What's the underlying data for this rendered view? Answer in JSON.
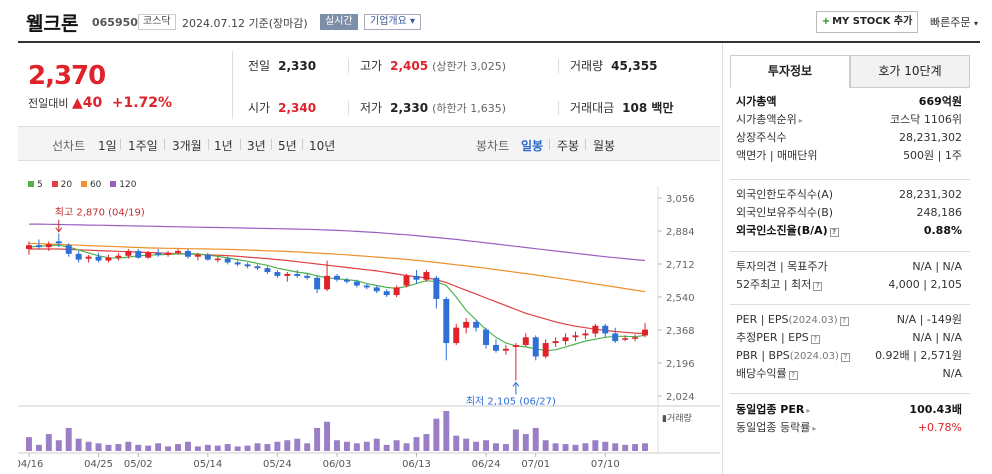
{
  "header": {
    "name": "웰크론",
    "code": "065950",
    "market": "코스닥",
    "date": "2024.07.12 기준(장마감)",
    "live": "실시간",
    "profile": "기업개요",
    "mystock": "MY STOCK 추가",
    "quick": "빠른주문"
  },
  "price": {
    "current": "2,370",
    "diff_label": "전일대비",
    "diff_value": "40",
    "diff_rate": "+1.72%"
  },
  "summary": {
    "prev_label": "전일",
    "prev_value": "2,330",
    "high_label": "고가",
    "high_value": "2,405",
    "upper_limit": "(상한가 3,025)",
    "volume_label": "거래량",
    "volume_value": "45,355",
    "open_label": "시가",
    "open_value": "2,340",
    "low_label": "저가",
    "low_value": "2,330",
    "lower_limit": "(하한가 1,635)",
    "amount_label": "거래대금",
    "amount_value": "108 백만"
  },
  "periods": {
    "line_chart": "선차트",
    "items": [
      "1일",
      "1주일",
      "3개월",
      "1년",
      "3년",
      "5년",
      "10년"
    ],
    "candle_chart": "봉차트",
    "candle_items": [
      "일봉",
      "주봉",
      "월봉"
    ]
  },
  "chart_data": {
    "type": "candlestick",
    "legend": [
      "5",
      "20",
      "60",
      "120"
    ],
    "legend_colors": [
      "#4db34d",
      "#e04040",
      "#f0902a",
      "#9a60c0"
    ],
    "y_ticks": [
      "3,056",
      "2,884",
      "2,712",
      "2,540",
      "2,368",
      "2,196",
      "2,024"
    ],
    "y_range": [
      2024,
      3056
    ],
    "x_ticks": [
      "04/16",
      "04/25",
      "05/02",
      "05/14",
      "05/24",
      "06/03",
      "06/13",
      "06/24",
      "07/01",
      "07/10"
    ],
    "x_tick_index": [
      0,
      7,
      11,
      18,
      25,
      31,
      39,
      46,
      51,
      58
    ],
    "annotation_high": "최고 2,870 (04/19)",
    "annotation_low": "최저 2,105 (06/27)",
    "volume_label": "거래량",
    "candles": [
      {
        "o": 2790,
        "h": 2830,
        "l": 2760,
        "c": 2810
      },
      {
        "o": 2810,
        "h": 2840,
        "l": 2790,
        "c": 2800
      },
      {
        "o": 2800,
        "h": 2830,
        "l": 2780,
        "c": 2815
      },
      {
        "o": 2830,
        "h": 2870,
        "l": 2800,
        "c": 2820
      },
      {
        "o": 2810,
        "h": 2820,
        "l": 2750,
        "c": 2765
      },
      {
        "o": 2765,
        "h": 2780,
        "l": 2720,
        "c": 2735
      },
      {
        "o": 2740,
        "h": 2760,
        "l": 2720,
        "c": 2750
      },
      {
        "o": 2750,
        "h": 2770,
        "l": 2720,
        "c": 2730
      },
      {
        "o": 2730,
        "h": 2760,
        "l": 2720,
        "c": 2745
      },
      {
        "o": 2745,
        "h": 2770,
        "l": 2730,
        "c": 2755
      },
      {
        "o": 2755,
        "h": 2790,
        "l": 2740,
        "c": 2780
      },
      {
        "o": 2780,
        "h": 2790,
        "l": 2740,
        "c": 2745
      },
      {
        "o": 2745,
        "h": 2780,
        "l": 2740,
        "c": 2770
      },
      {
        "o": 2770,
        "h": 2790,
        "l": 2750,
        "c": 2760
      },
      {
        "o": 2760,
        "h": 2780,
        "l": 2750,
        "c": 2770
      },
      {
        "o": 2770,
        "h": 2790,
        "l": 2760,
        "c": 2780
      },
      {
        "o": 2780,
        "h": 2790,
        "l": 2740,
        "c": 2750
      },
      {
        "o": 2750,
        "h": 2770,
        "l": 2730,
        "c": 2760
      },
      {
        "o": 2760,
        "h": 2770,
        "l": 2730,
        "c": 2735
      },
      {
        "o": 2735,
        "h": 2750,
        "l": 2720,
        "c": 2740
      },
      {
        "o": 2740,
        "h": 2750,
        "l": 2710,
        "c": 2720
      },
      {
        "o": 2720,
        "h": 2730,
        "l": 2700,
        "c": 2710
      },
      {
        "o": 2710,
        "h": 2720,
        "l": 2690,
        "c": 2700
      },
      {
        "o": 2700,
        "h": 2710,
        "l": 2680,
        "c": 2690
      },
      {
        "o": 2690,
        "h": 2700,
        "l": 2660,
        "c": 2670
      },
      {
        "o": 2670,
        "h": 2680,
        "l": 2640,
        "c": 2650
      },
      {
        "o": 2650,
        "h": 2670,
        "l": 2620,
        "c": 2660
      },
      {
        "o": 2660,
        "h": 2680,
        "l": 2640,
        "c": 2650
      },
      {
        "o": 2650,
        "h": 2660,
        "l": 2630,
        "c": 2640
      },
      {
        "o": 2640,
        "h": 2650,
        "l": 2560,
        "c": 2580
      },
      {
        "o": 2580,
        "h": 2730,
        "l": 2570,
        "c": 2650
      },
      {
        "o": 2650,
        "h": 2660,
        "l": 2620,
        "c": 2630
      },
      {
        "o": 2630,
        "h": 2640,
        "l": 2610,
        "c": 2620
      },
      {
        "o": 2620,
        "h": 2630,
        "l": 2590,
        "c": 2600
      },
      {
        "o": 2600,
        "h": 2610,
        "l": 2580,
        "c": 2590
      },
      {
        "o": 2590,
        "h": 2600,
        "l": 2560,
        "c": 2570
      },
      {
        "o": 2570,
        "h": 2580,
        "l": 2540,
        "c": 2550
      },
      {
        "o": 2550,
        "h": 2600,
        "l": 2540,
        "c": 2590
      },
      {
        "o": 2600,
        "h": 2660,
        "l": 2590,
        "c": 2650
      },
      {
        "o": 2650,
        "h": 2680,
        "l": 2610,
        "c": 2630
      },
      {
        "o": 2630,
        "h": 2680,
        "l": 2620,
        "c": 2670
      },
      {
        "o": 2640,
        "h": 2650,
        "l": 2480,
        "c": 2530
      },
      {
        "o": 2530,
        "h": 2540,
        "l": 2210,
        "c": 2300
      },
      {
        "o": 2300,
        "h": 2400,
        "l": 2290,
        "c": 2380
      },
      {
        "o": 2380,
        "h": 2430,
        "l": 2350,
        "c": 2410
      },
      {
        "o": 2410,
        "h": 2420,
        "l": 2360,
        "c": 2380
      },
      {
        "o": 2370,
        "h": 2380,
        "l": 2270,
        "c": 2290
      },
      {
        "o": 2290,
        "h": 2320,
        "l": 2250,
        "c": 2260
      },
      {
        "o": 2260,
        "h": 2290,
        "l": 2240,
        "c": 2270
      },
      {
        "o": 2280,
        "h": 2300,
        "l": 2105,
        "c": 2290
      },
      {
        "o": 2290,
        "h": 2350,
        "l": 2280,
        "c": 2330
      },
      {
        "o": 2330,
        "h": 2340,
        "l": 2210,
        "c": 2230
      },
      {
        "o": 2230,
        "h": 2320,
        "l": 2220,
        "c": 2300
      },
      {
        "o": 2300,
        "h": 2330,
        "l": 2280,
        "c": 2310
      },
      {
        "o": 2310,
        "h": 2350,
        "l": 2290,
        "c": 2330
      },
      {
        "o": 2330,
        "h": 2360,
        "l": 2310,
        "c": 2340
      },
      {
        "o": 2340,
        "h": 2370,
        "l": 2320,
        "c": 2350
      },
      {
        "o": 2350,
        "h": 2400,
        "l": 2330,
        "c": 2390
      },
      {
        "o": 2390,
        "h": 2400,
        "l": 2330,
        "c": 2350
      },
      {
        "o": 2350,
        "h": 2380,
        "l": 2300,
        "c": 2310
      },
      {
        "o": 2320,
        "h": 2340,
        "l": 2310,
        "c": 2325
      },
      {
        "o": 2325,
        "h": 2345,
        "l": 2310,
        "c": 2330
      },
      {
        "o": 2340,
        "h": 2405,
        "l": 2330,
        "c": 2370
      }
    ],
    "volume": [
      18,
      8,
      22,
      14,
      30,
      16,
      12,
      10,
      8,
      9,
      12,
      8,
      7,
      10,
      6,
      9,
      12,
      6,
      8,
      7,
      9,
      6,
      7,
      10,
      9,
      12,
      14,
      16,
      10,
      30,
      38,
      14,
      12,
      10,
      12,
      16,
      8,
      14,
      10,
      18,
      22,
      42,
      52,
      20,
      16,
      12,
      14,
      10,
      9,
      28,
      22,
      30,
      14,
      10,
      9,
      8,
      10,
      14,
      12,
      10,
      8,
      9,
      10
    ],
    "ma5": [
      2800,
      2805,
      2808,
      2810,
      2800,
      2785,
      2770,
      2755,
      2745,
      2742,
      2748,
      2755,
      2758,
      2760,
      2762,
      2765,
      2766,
      2764,
      2758,
      2752,
      2744,
      2735,
      2726,
      2715,
      2705,
      2690,
      2680,
      2670,
      2663,
      2650,
      2640,
      2635,
      2630,
      2625,
      2610,
      2600,
      2590,
      2585,
      2595,
      2610,
      2625,
      2620,
      2600,
      2540,
      2470,
      2420,
      2370,
      2330,
      2300,
      2285,
      2280,
      2270,
      2260,
      2265,
      2280,
      2295,
      2310,
      2320,
      2330,
      2335,
      2335,
      2333,
      2340
    ],
    "ma20": [
      2790,
      2790,
      2790,
      2790,
      2788,
      2786,
      2784,
      2782,
      2780,
      2778,
      2776,
      2774,
      2772,
      2770,
      2768,
      2766,
      2764,
      2762,
      2760,
      2758,
      2756,
      2752,
      2748,
      2744,
      2740,
      2735,
      2730,
      2724,
      2718,
      2712,
      2706,
      2700,
      2694,
      2688,
      2682,
      2676,
      2668,
      2660,
      2652,
      2645,
      2640,
      2630,
      2615,
      2595,
      2575,
      2555,
      2535,
      2515,
      2495,
      2475,
      2455,
      2440,
      2425,
      2410,
      2398,
      2388,
      2380,
      2372,
      2366,
      2360,
      2356,
      2352,
      2350
    ],
    "ma60": [
      2820,
      2818,
      2816,
      2814,
      2812,
      2810,
      2808,
      2806,
      2804,
      2802,
      2800,
      2798,
      2796,
      2795,
      2794,
      2793,
      2792,
      2791,
      2790,
      2789,
      2788,
      2787,
      2785,
      2783,
      2781,
      2779,
      2777,
      2775,
      2772,
      2769,
      2766,
      2763,
      2760,
      2756,
      2752,
      2748,
      2744,
      2740,
      2736,
      2731,
      2726,
      2720,
      2714,
      2708,
      2702,
      2696,
      2690,
      2683,
      2676,
      2669,
      2662,
      2655,
      2647,
      2640,
      2632,
      2624,
      2616,
      2608,
      2600,
      2592,
      2584,
      2576,
      2568
    ],
    "ma120": [
      2920,
      2920,
      2919,
      2918,
      2917,
      2916,
      2915,
      2914,
      2913,
      2912,
      2911,
      2910,
      2909,
      2908,
      2907,
      2906,
      2905,
      2904,
      2903,
      2902,
      2901,
      2900,
      2899,
      2898,
      2897,
      2896,
      2895,
      2894,
      2893,
      2891,
      2889,
      2887,
      2885,
      2882,
      2879,
      2876,
      2872,
      2868,
      2864,
      2860,
      2855,
      2850,
      2845,
      2840,
      2834,
      2828,
      2822,
      2816,
      2810,
      2804,
      2798,
      2792,
      2786,
      2780,
      2774,
      2768,
      2762,
      2756,
      2750,
      2745,
      2740,
      2735,
      2730
    ]
  },
  "invest": {
    "tab_active": "투자정보",
    "tab_inactive": "호가 10단계",
    "s1": [
      {
        "l": "시가총액",
        "r": "669억원",
        "bold": true
      },
      {
        "l": "시가총액순위",
        "r": "코스닥 1106위",
        "arrow": true
      },
      {
        "l": "상장주식수",
        "r": "28,231,302"
      },
      {
        "l": "액면가 | 매매단위",
        "r": "500원 | 1주"
      }
    ],
    "s2": [
      {
        "l": "외국인한도주식수(A)",
        "r": "28,231,302"
      },
      {
        "l": "외국인보유주식수(B)",
        "r": "248,186"
      },
      {
        "l": "외국인소진율(B/A)",
        "r": "0.88%",
        "bold": true,
        "q": true
      }
    ],
    "s3": [
      {
        "l": "투자의견 | 목표주가",
        "r": "N/A | N/A"
      },
      {
        "l": "52주최고 | 최저",
        "r": "4,000 | 2,105",
        "q": true
      }
    ],
    "s4": [
      {
        "l": "PER | EPS",
        "g": "(2024.03)",
        "r": "N/A | -149원",
        "q": true
      },
      {
        "l": "추정PER | EPS",
        "r": "N/A | N/A",
        "q": true
      },
      {
        "l": "PBR | BPS",
        "g": "(2024.03)",
        "r": "0.92배 | 2,571원",
        "q": true
      },
      {
        "l": "배당수익률",
        "r": "N/A",
        "q": true
      }
    ],
    "s5": [
      {
        "l": "동일업종 PER",
        "r": "100.43배",
        "bold": true,
        "arrow": true
      },
      {
        "l": "동일업종 등락률",
        "r": "+0.78%",
        "red": true,
        "arrow": true
      }
    ]
  }
}
